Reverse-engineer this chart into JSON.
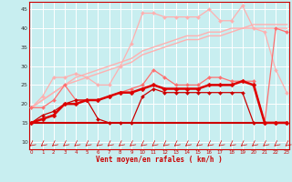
{
  "background_color": "#c8eef0",
  "grid_color": "#ffffff",
  "xlabel": "Vent moyen/en rafales ( km/h )",
  "x": [
    0,
    1,
    2,
    3,
    4,
    5,
    6,
    7,
    8,
    9,
    10,
    11,
    12,
    13,
    14,
    15,
    16,
    17,
    18,
    19,
    20,
    21,
    22,
    23
  ],
  "series": [
    {
      "label": "light_trend1",
      "color": "#ffb0b0",
      "lw": 1.0,
      "marker": null,
      "y": [
        19,
        21,
        23,
        25,
        26,
        27,
        28,
        29,
        30,
        31,
        33,
        34,
        35,
        36,
        37,
        37,
        38,
        38,
        39,
        40,
        40,
        40,
        40,
        40
      ]
    },
    {
      "label": "light_trend2",
      "color": "#ffb0b0",
      "lw": 1.0,
      "marker": null,
      "y": [
        19,
        21,
        23,
        25,
        27,
        28,
        29,
        30,
        31,
        32,
        34,
        35,
        36,
        37,
        38,
        38,
        39,
        39,
        40,
        40,
        41,
        41,
        41,
        41
      ]
    },
    {
      "label": "light_wavy_high",
      "color": "#ffb0b0",
      "lw": 0.9,
      "marker": "D",
      "markersize": 2.0,
      "y": [
        19,
        22,
        27,
        27,
        28,
        27,
        25,
        25,
        30,
        36,
        44,
        44,
        43,
        43,
        43,
        43,
        45,
        42,
        42,
        46,
        40,
        39,
        29,
        23
      ]
    },
    {
      "label": "medium_pink",
      "color": "#ff7070",
      "lw": 0.9,
      "marker": "D",
      "markersize": 2.0,
      "y": [
        19,
        19,
        21,
        25,
        21,
        21,
        21,
        22,
        23,
        24,
        25,
        29,
        27,
        25,
        25,
        25,
        27,
        27,
        26,
        26,
        26,
        15,
        40,
        39
      ]
    },
    {
      "label": "dark_red_flat",
      "color": "#cc0000",
      "lw": 1.5,
      "marker": null,
      "y": [
        15,
        15,
        15,
        15,
        15,
        15,
        15,
        15,
        15,
        15,
        15,
        15,
        15,
        15,
        15,
        15,
        15,
        15,
        15,
        15,
        15,
        15,
        15,
        15
      ]
    },
    {
      "label": "dark_red_jagged",
      "color": "#cc0000",
      "lw": 0.9,
      "marker": "D",
      "markersize": 2.0,
      "y": [
        15,
        17,
        18,
        20,
        21,
        21,
        16,
        15,
        15,
        15,
        22,
        24,
        23,
        23,
        23,
        23,
        23,
        23,
        23,
        23,
        15,
        15,
        15,
        15
      ]
    },
    {
      "label": "dark_red_main",
      "color": "#dd0000",
      "lw": 1.8,
      "marker": "D",
      "markersize": 2.5,
      "y": [
        15,
        16,
        17,
        20,
        20,
        21,
        21,
        22,
        23,
        23,
        24,
        25,
        24,
        24,
        24,
        24,
        25,
        25,
        25,
        26,
        25,
        15,
        15,
        15
      ]
    }
  ],
  "xlim": [
    -0.2,
    23.2
  ],
  "ylim": [
    8,
    47
  ],
  "yticks": [
    10,
    15,
    20,
    25,
    30,
    35,
    40,
    45
  ],
  "xticks": [
    0,
    1,
    2,
    3,
    4,
    5,
    6,
    7,
    8,
    9,
    10,
    11,
    12,
    13,
    14,
    15,
    16,
    17,
    18,
    19,
    20,
    21,
    22,
    23
  ],
  "tick_color": "#cc0000",
  "spine_color": "#cc0000",
  "xlabel_color": "#cc0000",
  "xlabel_fontsize": 5.5,
  "ytick_fontsize": 4.5,
  "xtick_fontsize": 4.0
}
